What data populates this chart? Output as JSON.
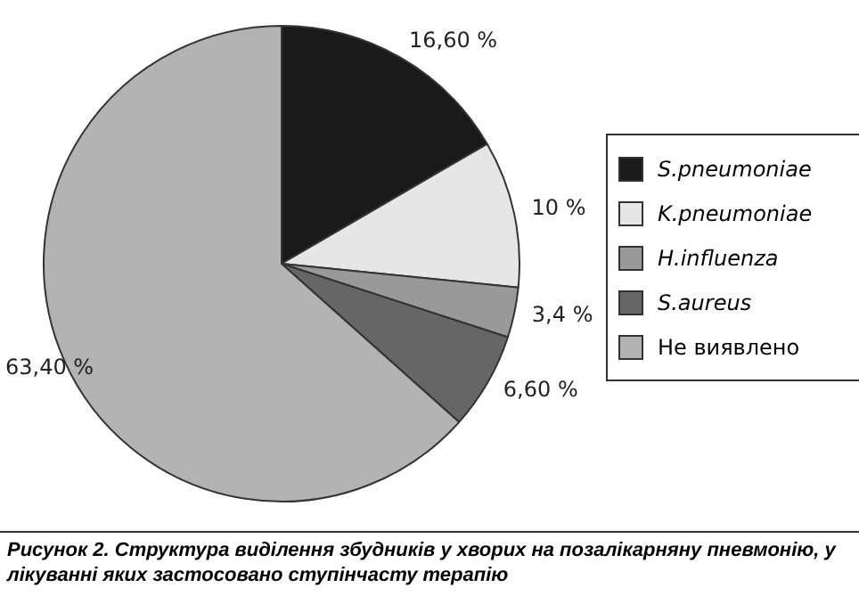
{
  "chart_data": {
    "type": "pie",
    "categories": [
      "S.pneumoniae",
      "K.pneumoniae",
      "H.influenza",
      "S.aureus",
      "Не виявлено"
    ],
    "values": [
      16.6,
      10,
      3.4,
      6.6,
      63.4
    ],
    "value_labels": [
      "16,60 %",
      "10 %",
      "3,4 %",
      "6,60 %",
      "63,40 %"
    ],
    "colors": [
      "#1a1a1a",
      "#e6e6e6",
      "#999999",
      "#666666",
      "#b3b3b3"
    ],
    "legend": "right",
    "annotations": [
      "Рисунок 2. Структура виділення збудників у хворих на позалікарняну пневмонію, у лікуванні яких застосовано ступінчасту терапію"
    ]
  }
}
